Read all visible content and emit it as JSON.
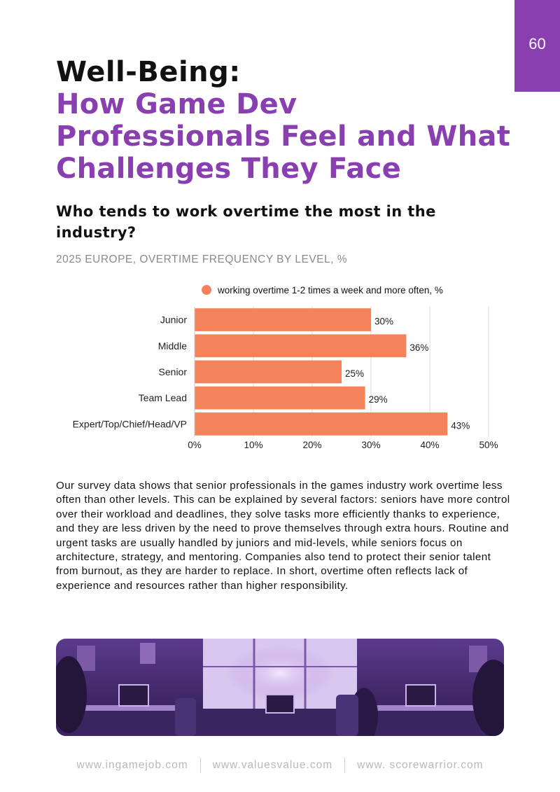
{
  "page": {
    "number": "60"
  },
  "header": {
    "title_line1": "Well-Being:",
    "title_line2": "How Game Dev Professionals Feel and What Challenges They Face"
  },
  "section": {
    "question": "Who tends to work overtime the most in the industry?",
    "caption": "2025 EUROPE, OVERTIME FREQUENCY BY LEVEL, %"
  },
  "chart_data": {
    "type": "bar",
    "orientation": "horizontal",
    "title": "2025 EUROPE, OVERTIME FREQUENCY BY LEVEL, %",
    "categories": [
      "Junior",
      "Middle",
      "Senior",
      "Team Lead",
      "Expert/Top/Chief/Head/VP"
    ],
    "series": [
      {
        "name": "working overtime 1-2 times a week and more often, %",
        "values": [
          30,
          36,
          25,
          29,
          43
        ],
        "color": "#f4825b"
      }
    ],
    "value_labels": [
      "30%",
      "36%",
      "25%",
      "29%",
      "43%"
    ],
    "xlim": [
      0,
      50
    ],
    "xticks": [
      0,
      10,
      20,
      30,
      40,
      50
    ],
    "xtick_labels": [
      "0%",
      "10%",
      "20%",
      "30%",
      "40%",
      "50%"
    ],
    "grid": true,
    "legend": "top"
  },
  "body": {
    "paragraph": "Our survey data shows that senior professionals in the games industry work overtime less often than other levels. This can be explained by several factors: seniors have more control over their workload and deadlines, they solve tasks more efficiently thanks to experience, and they are less driven by the need to prove themselves through extra hours. Routine and urgent tasks are usually handled by juniors and mid-levels, while seniors focus on architecture, strategy, and mentoring. Companies also tend to protect their senior talent from burnout, as they are harder to replace. In short, overtime often reflects lack of experience and resources rather than higher responsibility."
  },
  "footer": {
    "links": [
      "www.ingamejob.com",
      "www.valuesvalue.com",
      "www. scorewarrior.com"
    ]
  },
  "colors": {
    "accent": "#8a3fb0",
    "bar": "#f4825b"
  }
}
